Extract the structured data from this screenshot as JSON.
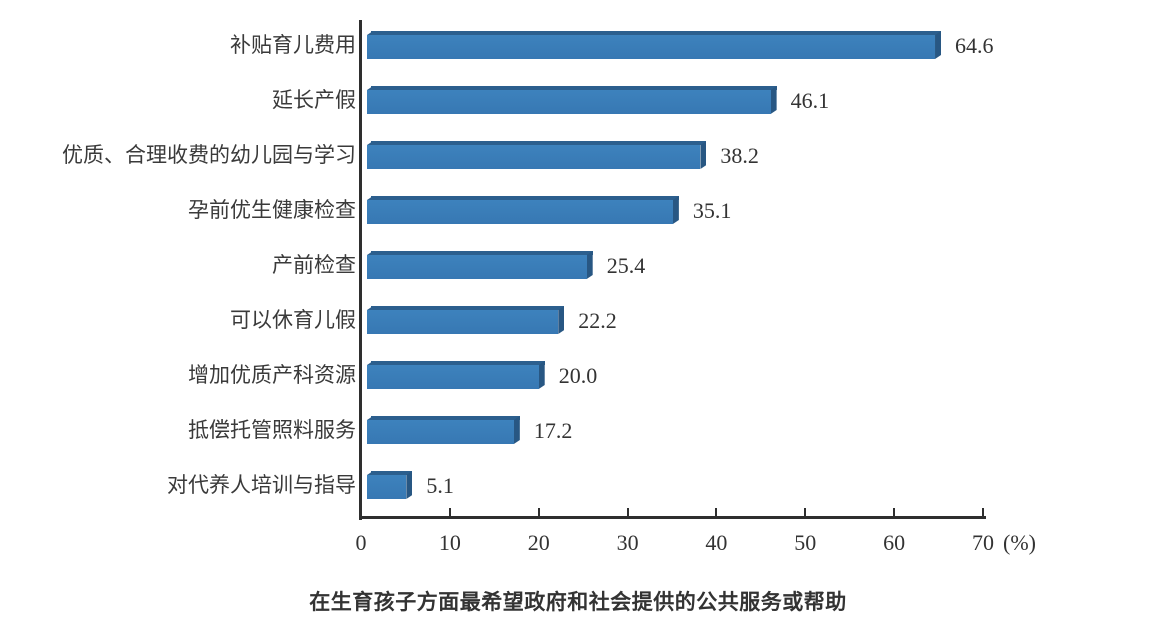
{
  "chart_data": {
    "type": "bar",
    "orientation": "horizontal",
    "title": "在生育孩子方面最希望政府和社会提供的公共服务或帮助",
    "xlabel": "(%)",
    "ylabel": "",
    "xlim": [
      0,
      70
    ],
    "x_ticks": [
      0,
      10,
      20,
      30,
      40,
      50,
      60,
      70
    ],
    "grid": false,
    "legend": null,
    "bar_color": "#3a7db8",
    "categories": [
      "补贴育儿费用",
      "延长产假",
      "优质、合理收费的幼儿园与学习",
      "孕前优生健康检查",
      "产前检查",
      "可以休育儿假",
      "增加优质产科资源",
      "抵偿托管照料服务",
      "对代养人培训与指导"
    ],
    "values": [
      64.6,
      46.1,
      38.2,
      35.1,
      25.4,
      22.2,
      20.0,
      17.2,
      5.1
    ],
    "value_labels": [
      "64.6",
      "46.1",
      "38.2",
      "35.1",
      "25.4",
      "22.2",
      "20.0",
      "17.2",
      "5.1"
    ]
  },
  "axis": {
    "ticks": [
      "0",
      "10",
      "20",
      "30",
      "40",
      "50",
      "60",
      "70"
    ],
    "unit": "(%)"
  },
  "title": "在生育孩子方面最希望政府和社会提供的公共服务或帮助"
}
